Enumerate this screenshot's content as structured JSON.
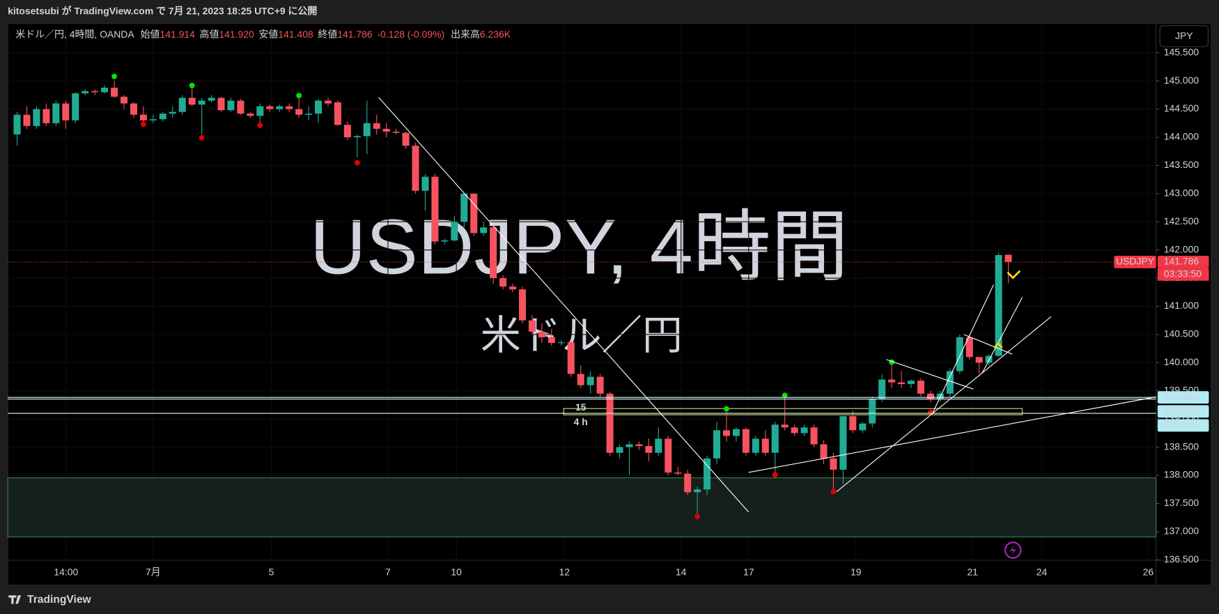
{
  "header": {
    "title": "kitosetsubi が TradingView.com で 7月 21, 2023 18:25 UTC+9 に公開"
  },
  "chart_data": {
    "type": "candlestick",
    "symbol": "米ドル／円, 4時間, OANDA",
    "legend": {
      "open_label": "始値",
      "open": "141.914",
      "high_label": "高値",
      "high": "141.920",
      "low_label": "安値",
      "low": "141.408",
      "close_label": "終値",
      "close": "141.786",
      "change": "-0.128 (-0.09%)",
      "volume_label": "出来高",
      "volume": "6.236K"
    },
    "watermark": "USDJPY, 4時間",
    "watermark_sub": "米ドル／円",
    "currency": "JPY",
    "up_color": "#22ab94",
    "down_color": "#f7525f",
    "open": [
      144.05,
      144.4,
      144.2,
      144.5,
      144.25,
      144.6,
      144.3,
      144.78,
      144.82,
      144.8,
      144.88,
      144.72,
      144.6,
      144.4,
      144.3,
      144.32,
      144.42,
      144.45,
      144.7,
      144.58,
      144.65,
      144.7,
      144.48,
      144.65,
      144.42,
      144.38,
      144.55,
      144.5,
      144.55,
      144.5,
      144.4,
      144.42,
      144.65,
      144.62,
      144.22,
      144.0,
      144.02,
      144.25,
      144.15,
      144.1,
      144.08,
      143.85,
      143.05,
      143.3,
      142.15,
      142.17,
      142.5,
      143.0,
      142.3,
      142.4,
      141.5,
      141.35,
      141.3,
      140.75,
      140.55,
      140.45,
      140.35,
      140.36,
      139.8,
      139.6,
      139.75,
      139.45,
      138.4,
      138.5,
      138.55,
      138.52,
      138.4,
      138.65,
      138.05,
      138.03,
      137.7,
      137.75,
      138.3,
      138.8,
      138.7,
      138.82,
      138.4,
      138.65,
      138.4,
      138.9,
      138.85,
      138.75,
      138.85,
      138.55,
      138.3,
      138.1,
      139.05,
      138.8,
      138.92,
      139.35,
      139.7,
      139.65,
      139.62,
      139.68,
      139.45,
      139.35,
      139.45,
      139.85,
      140.45,
      140.1,
      140.0,
      140.12,
      141.914
    ],
    "high": [
      144.45,
      144.55,
      144.55,
      144.6,
      144.65,
      144.65,
      144.8,
      144.85,
      144.85,
      144.92,
      145.0,
      144.75,
      144.62,
      144.55,
      144.4,
      144.45,
      144.55,
      144.75,
      144.88,
      144.7,
      144.75,
      144.72,
      144.7,
      144.68,
      144.45,
      144.6,
      144.58,
      144.58,
      144.6,
      144.72,
      144.55,
      144.68,
      144.7,
      144.65,
      144.28,
      144.05,
      144.65,
      144.4,
      144.25,
      144.15,
      144.1,
      143.9,
      143.35,
      143.35,
      142.2,
      142.6,
      143.0,
      143.0,
      142.5,
      142.45,
      141.55,
      141.4,
      141.35,
      140.85,
      140.7,
      140.6,
      140.4,
      140.4,
      139.95,
      139.85,
      139.8,
      139.48,
      138.55,
      138.6,
      138.6,
      138.65,
      138.85,
      138.7,
      138.15,
      138.1,
      137.8,
      138.35,
      138.95,
      139.15,
      138.85,
      138.85,
      138.7,
      138.8,
      138.95,
      139.4,
      138.9,
      138.9,
      138.9,
      138.62,
      138.4,
      139.05,
      139.15,
      138.95,
      139.4,
      139.8,
      140.0,
      139.85,
      139.7,
      139.72,
      139.5,
      139.5,
      139.9,
      140.5,
      140.5,
      140.1,
      140.15,
      141.95,
      141.92
    ],
    "low": [
      143.85,
      144.15,
      144.15,
      144.2,
      144.2,
      144.15,
      144.25,
      144.75,
      144.75,
      144.78,
      144.7,
      144.5,
      144.35,
      144.25,
      144.25,
      144.28,
      144.35,
      144.4,
      144.55,
      144.05,
      144.62,
      144.45,
      144.45,
      144.4,
      144.35,
      144.25,
      144.45,
      144.45,
      144.45,
      144.35,
      144.3,
      144.25,
      144.55,
      144.2,
      143.95,
      143.65,
      143.7,
      144.05,
      144.0,
      144.05,
      143.8,
      143.0,
      142.7,
      142.1,
      142.1,
      142.15,
      142.4,
      142.25,
      142.25,
      141.4,
      141.3,
      141.25,
      140.7,
      140.5,
      140.35,
      140.3,
      140.3,
      139.75,
      139.55,
      139.45,
      139.4,
      138.35,
      138.3,
      138.0,
      138.45,
      138.25,
      138.35,
      138.0,
      138.0,
      137.65,
      137.3,
      137.65,
      138.2,
      138.6,
      138.6,
      138.35,
      138.35,
      138.35,
      138.05,
      138.8,
      138.7,
      138.7,
      138.5,
      138.2,
      137.75,
      137.85,
      138.75,
      138.75,
      138.85,
      139.3,
      139.55,
      139.55,
      139.55,
      139.4,
      139.3,
      139.3,
      139.4,
      139.8,
      140.05,
      139.8,
      139.95,
      140.1,
      141.408
    ],
    "close": [
      144.4,
      144.2,
      144.5,
      144.25,
      144.6,
      144.3,
      144.78,
      144.82,
      144.8,
      144.88,
      144.72,
      144.6,
      144.4,
      144.3,
      144.32,
      144.42,
      144.45,
      144.7,
      144.58,
      144.65,
      144.7,
      144.48,
      144.65,
      144.42,
      144.38,
      144.55,
      144.5,
      144.55,
      144.5,
      144.4,
      144.42,
      144.65,
      144.6,
      144.22,
      144.0,
      144.02,
      144.25,
      144.15,
      144.1,
      144.08,
      143.85,
      143.05,
      143.3,
      142.15,
      142.17,
      142.5,
      143.0,
      142.3,
      142.4,
      141.5,
      141.35,
      141.3,
      140.75,
      140.55,
      140.45,
      140.35,
      140.36,
      139.8,
      139.6,
      139.75,
      139.45,
      138.4,
      138.5,
      138.55,
      138.52,
      138.4,
      138.65,
      138.05,
      138.03,
      137.7,
      137.75,
      138.3,
      138.8,
      138.7,
      138.82,
      138.4,
      138.65,
      138.4,
      138.9,
      138.85,
      138.75,
      138.85,
      138.55,
      138.3,
      138.1,
      139.05,
      138.8,
      138.92,
      139.35,
      139.7,
      139.65,
      139.62,
      139.68,
      139.45,
      139.35,
      139.45,
      139.85,
      140.45,
      140.1,
      140.0,
      140.12,
      141.91,
      141.786
    ],
    "pivot_highs": {
      "x": [
        10,
        18,
        29,
        73,
        79,
        90
      ],
      "values": [
        145.08,
        144.92,
        144.74,
        139.18,
        139.42,
        140.01
      ],
      "color": "#00e600"
    },
    "pivot_lows": {
      "x": [
        13,
        19,
        25,
        35,
        70,
        78,
        84,
        94
      ],
      "values": [
        144.23,
        143.99,
        144.21,
        143.55,
        137.27,
        138.01,
        137.71,
        139.12
      ],
      "color": "#e00000"
    },
    "price_lines": [
      {
        "name": "USDJPY",
        "value": 141.786,
        "countdown": "03:33:50",
        "color": "#f23645"
      },
      {
        "value": 139.383,
        "color": "#b2ebf2"
      },
      {
        "value": 139.354,
        "color": "#b2ebf2"
      },
      {
        "value": 139.101,
        "color": "#b2ebf2"
      }
    ],
    "annotations": [
      "15",
      "4 h"
    ],
    "xlim": [
      -0.96,
      117.2
    ],
    "xticks": [
      {
        "value": 5.04,
        "label": "14:00"
      },
      {
        "value": 14,
        "label": "7月"
      },
      {
        "value": 26.16,
        "label": "5"
      },
      {
        "value": 38.16,
        "label": "7"
      },
      {
        "value": 45.2,
        "label": "10"
      },
      {
        "value": 56.32,
        "label": "12"
      },
      {
        "value": 68.32,
        "label": "14"
      },
      {
        "value": 75.28,
        "label": "17"
      },
      {
        "value": 86.32,
        "label": "19"
      },
      {
        "value": 98.32,
        "label": "21"
      },
      {
        "value": 105.44,
        "label": "24"
      },
      {
        "value": 116.4,
        "label": "26"
      }
    ],
    "ylim": [
      136.492,
      146.022
    ],
    "yticks": [
      {
        "value": 136.5,
        "label": "136.500"
      },
      {
        "value": 137,
        "label": "137.000"
      },
      {
        "value": 137.5,
        "label": "137.500"
      },
      {
        "value": 138,
        "label": "138.000"
      },
      {
        "value": 138.5,
        "label": "138.500"
      },
      {
        "value": 139,
        "label": "139.000"
      },
      {
        "value": 139.5,
        "label": "139.500"
      },
      {
        "value": 140,
        "label": "140.000"
      },
      {
        "value": 140.5,
        "label": "140.500"
      },
      {
        "value": 141,
        "label": "141.000"
      },
      {
        "value": 141.5,
        "label": "141.500"
      },
      {
        "value": 142,
        "label": "142.000"
      },
      {
        "value": 142.5,
        "label": "142.500"
      },
      {
        "value": 143,
        "label": "143.000"
      },
      {
        "value": 143.5,
        "label": "143.500"
      },
      {
        "value": 144,
        "label": "144.000"
      },
      {
        "value": 144.5,
        "label": "144.500"
      },
      {
        "value": 145,
        "label": "145.000"
      },
      {
        "value": 145.5,
        "label": "145.500"
      }
    ],
    "grid": true
  },
  "footer": {
    "brand": "TradingView"
  }
}
